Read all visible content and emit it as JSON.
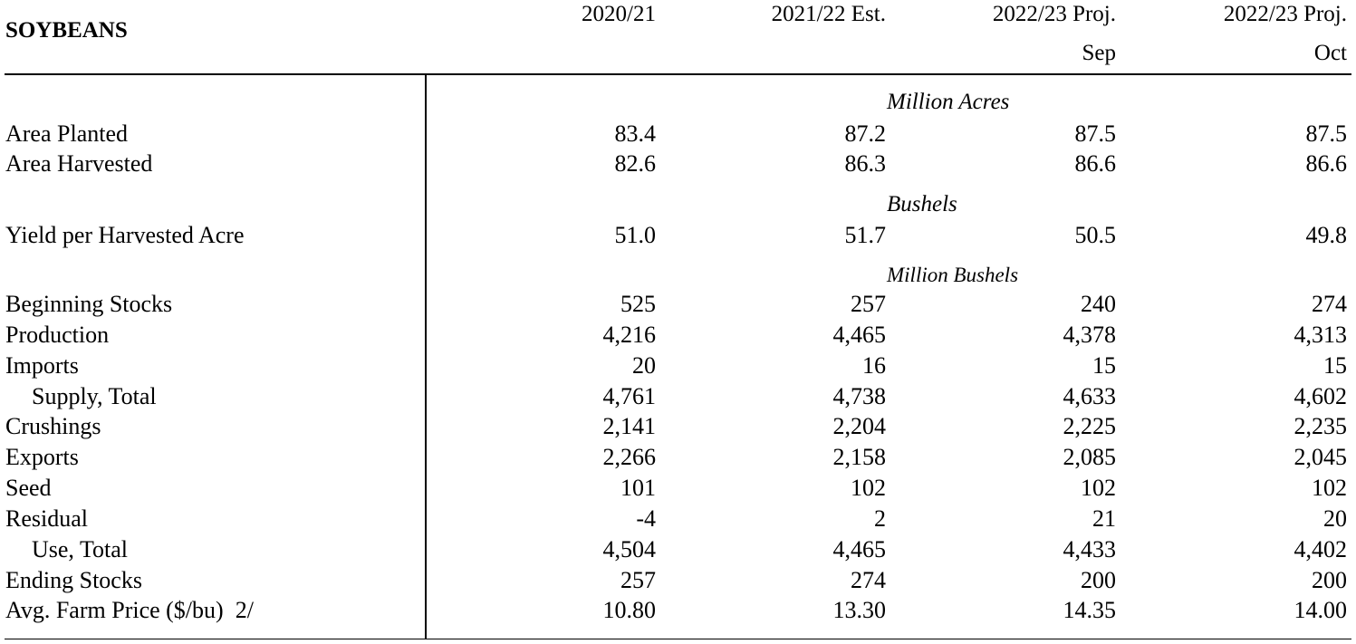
{
  "title": "SOYBEANS",
  "columns": [
    {
      "line1": "2020/21",
      "line2": ""
    },
    {
      "line1": "2021/22 Est.",
      "line2": ""
    },
    {
      "line1": "2022/23 Proj.",
      "line2": "Sep"
    },
    {
      "line1": "2022/23 Proj.",
      "line2": "Oct"
    }
  ],
  "units": {
    "acres": "Million Acres",
    "bushels": "Bushels",
    "million_bushels": "Million Bushels"
  },
  "rows": [
    {
      "label": "Area Planted",
      "values": [
        "83.4",
        "87.2",
        "87.5",
        "87.5"
      ]
    },
    {
      "label": "Area Harvested",
      "values": [
        "82.6",
        "86.3",
        "86.6",
        "86.6"
      ]
    },
    {
      "label": "Yield per Harvested Acre",
      "values": [
        "51.0",
        "51.7",
        "50.5",
        "49.8"
      ]
    },
    {
      "label": "Beginning Stocks",
      "values": [
        "525",
        "257",
        "240",
        "274"
      ]
    },
    {
      "label": "Production",
      "values": [
        "4,216",
        "4,465",
        "4,378",
        "4,313"
      ]
    },
    {
      "label": "Imports",
      "values": [
        "20",
        "16",
        "15",
        "15"
      ]
    },
    {
      "label": "Supply, Total",
      "values": [
        "4,761",
        "4,738",
        "4,633",
        "4,602"
      ]
    },
    {
      "label": "Crushings",
      "values": [
        "2,141",
        "2,204",
        "2,225",
        "2,235"
      ]
    },
    {
      "label": "Exports",
      "values": [
        "2,266",
        "2,158",
        "2,085",
        "2,045"
      ]
    },
    {
      "label": "Seed",
      "values": [
        "101",
        "102",
        "102",
        "102"
      ]
    },
    {
      "label": "Residual",
      "values": [
        "-4",
        "2",
        "21",
        "20"
      ]
    },
    {
      "label": "Use, Total",
      "values": [
        "4,504",
        "4,465",
        "4,433",
        "4,402"
      ]
    },
    {
      "label": "Ending Stocks",
      "values": [
        "257",
        "274",
        "200",
        "200"
      ]
    },
    {
      "label": "Avg. Farm Price ($/bu)  2/",
      "values": [
        "10.80",
        "13.30",
        "14.35",
        "14.00"
      ]
    }
  ]
}
